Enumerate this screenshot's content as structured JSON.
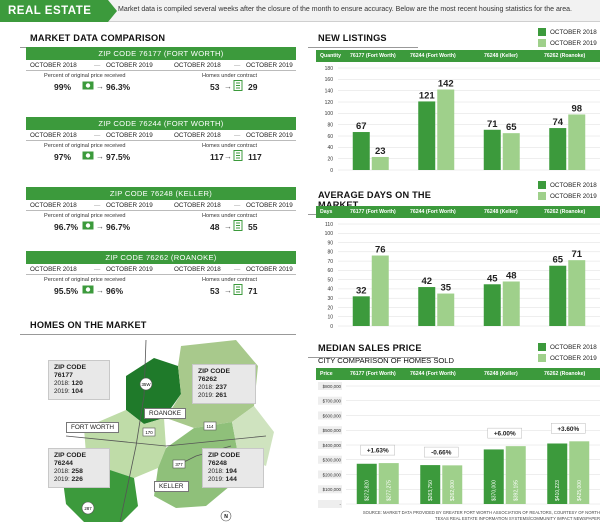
{
  "header": {
    "tag": "REAL ESTATE",
    "note": "Market data is compiled several weeks after the closure of the month to ensure accuracy. Below are the most recent housing statistics for the area."
  },
  "market_comparison": {
    "title": "MARKET DATA COMPARISON",
    "zips": [
      {
        "title": "ZIP CODE 76177 (FORT WORTH)",
        "m1": "OCTOBER 2018",
        "m2": "OCTOBER 2019",
        "price_label": "Percent of original price received",
        "p1": "99%",
        "p2": "96.3%",
        "homes_label": "Homes under contract",
        "h1": "53",
        "h2": "29"
      },
      {
        "title": "ZIP CODE 76244 (FORT WORTH)",
        "m1": "OCTOBER 2018",
        "m2": "OCTOBER 2019",
        "price_label": "Percent of original price received",
        "p1": "97%",
        "p2": "97.5%",
        "homes_label": "Homes under contract",
        "h1": "117",
        "h2": "117"
      },
      {
        "title": "ZIP CODE 76248 (KELLER)",
        "m1": "OCTOBER 2018",
        "m2": "OCTOBER 2019",
        "price_label": "Percent of original price received",
        "p1": "96.7%",
        "p2": "96.7%",
        "homes_label": "Homes under contract",
        "h1": "48",
        "h2": "55"
      },
      {
        "title": "ZIP CODE 76262 (ROANOKE)",
        "m1": "OCTOBER 2018",
        "m2": "OCTOBER 2019",
        "price_label": "Percent of original price received",
        "p1": "95.5%",
        "p2": "96%",
        "homes_label": "Homes under contract",
        "h1": "53",
        "h2": "71"
      }
    ]
  },
  "homes_on_market": {
    "title": "HOMES ON THE MARKET",
    "callouts": [
      {
        "zip": "ZIP CODE",
        "code": "76177",
        "y1": "2018:",
        "v1": "120",
        "y2": "2019:",
        "v2": "104"
      },
      {
        "zip": "ZIP CODE",
        "code": "76262",
        "y1": "2018:",
        "v1": "237",
        "y2": "2019:",
        "v2": "261"
      },
      {
        "zip": "ZIP CODE",
        "code": "76244",
        "y1": "2018:",
        "v1": "258",
        "y2": "2019:",
        "v2": "226"
      },
      {
        "zip": "ZIP CODE",
        "code": "76248",
        "y1": "2018:",
        "v1": "194",
        "y2": "2019:",
        "v2": "144"
      }
    ],
    "cities": {
      "roanoke": "ROANOKE",
      "fort_worth": "FORT WORTH",
      "keller": "KELLER"
    },
    "roads": {
      "r1": "35W",
      "r2": "170",
      "r3": "114",
      "r4": "377",
      "r5": "287"
    },
    "north": "N"
  },
  "legend": {
    "a": "OCTOBER 2018",
    "b": "OCTOBER 2019"
  },
  "colors": {
    "dark": "#3c9a3c",
    "light": "#9fd08b",
    "header_green": "#3c9a3c"
  },
  "chart_data": [
    {
      "type": "bar",
      "title": "NEW LISTINGS",
      "first_header": "Quantity",
      "categories": [
        "76177 (Fort Worth)",
        "76244 (Fort Worth)",
        "76248 (Keller)",
        "76262 (Roanoke)"
      ],
      "series": [
        {
          "name": "OCTOBER 2018",
          "values": [
            67,
            121,
            71,
            74
          ]
        },
        {
          "name": "OCTOBER 2019",
          "values": [
            23,
            142,
            65,
            98
          ]
        }
      ],
      "ylim": [
        0,
        180
      ],
      "yticks": [
        "0",
        "20",
        "40",
        "60",
        "80",
        "100",
        "120",
        "140",
        "160",
        "180"
      ]
    },
    {
      "type": "bar",
      "title": "AVERAGE DAYS ON THE MARKET",
      "first_header": "Days",
      "categories": [
        "76177 (Fort Worth)",
        "76244 (Fort Worth)",
        "76248 (Keller)",
        "76262 (Roanoke)"
      ],
      "series": [
        {
          "name": "OCTOBER 2018",
          "values": [
            32,
            42,
            45,
            65
          ]
        },
        {
          "name": "OCTOBER 2019",
          "values": [
            76,
            35,
            48,
            71
          ]
        }
      ],
      "ylim": [
        0,
        110
      ],
      "yticks": [
        "0",
        "10",
        "20",
        "30",
        "40",
        "50",
        "60",
        "70",
        "80",
        "90",
        "100",
        "110"
      ]
    },
    {
      "type": "bar",
      "title": "MEDIAN SALES PRICE",
      "subtitle": "CITY COMPARISON OF HOMES SOLD",
      "first_header": "Price",
      "categories": [
        "76177 (Fort Worth)",
        "76244 (Fort Worth)",
        "76248 (Keller)",
        "76262 (Roanoke)"
      ],
      "series": [
        {
          "name": "OCTOBER 2018",
          "values": [
            272820,
            263750,
            370000,
            410223
          ],
          "labels": [
            "$272,820",
            "$263,750",
            "$370,000",
            "$410,223"
          ]
        },
        {
          "name": "OCTOBER 2019",
          "values": [
            277275,
            262000,
            392195,
            425000
          ],
          "labels": [
            "$277,275",
            "$262,000",
            "$392,195",
            "$425,000"
          ]
        }
      ],
      "changes": [
        "+1.63%",
        "-0.66%",
        "+6.00%",
        "+3.60%"
      ],
      "ylim": [
        0,
        800000
      ],
      "yticks": [
        "-",
        "$100,000",
        "$200,000",
        "$300,000",
        "$400,000",
        "$500,000",
        "$600,000",
        "$700,000",
        "$800,000"
      ]
    }
  ],
  "source": "SOURCE: MARKET DATA PROVIDED BY GREATER FORT WORTH ASSOCIATION OF REALTORS, COURTESY OF NORTH TEXAS REAL ESTATE INFORMATION SYSTEMS/COMMUNITY IMPACT NEWSPAPER"
}
